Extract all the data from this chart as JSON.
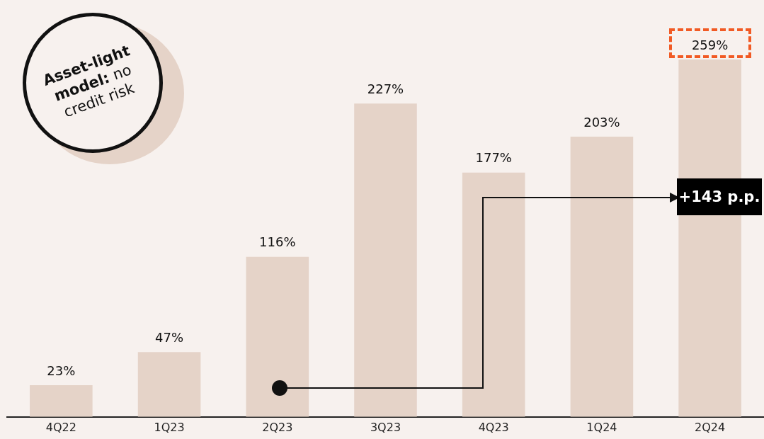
{
  "chart_data": {
    "type": "bar",
    "categories": [
      "4Q22",
      "1Q23",
      "2Q23",
      "3Q23",
      "4Q23",
      "1Q24",
      "2Q24"
    ],
    "values": [
      23,
      47,
      116,
      227,
      177,
      203,
      259
    ],
    "value_labels": [
      "23%",
      "47%",
      "116%",
      "227%",
      "177%",
      "203%",
      "259%"
    ],
    "color": "#e5d3c8",
    "grid": false,
    "legend": false,
    "annotations": [
      "Asset-light model:",
      "no credit risk",
      "+143 p.p."
    ]
  }
}
